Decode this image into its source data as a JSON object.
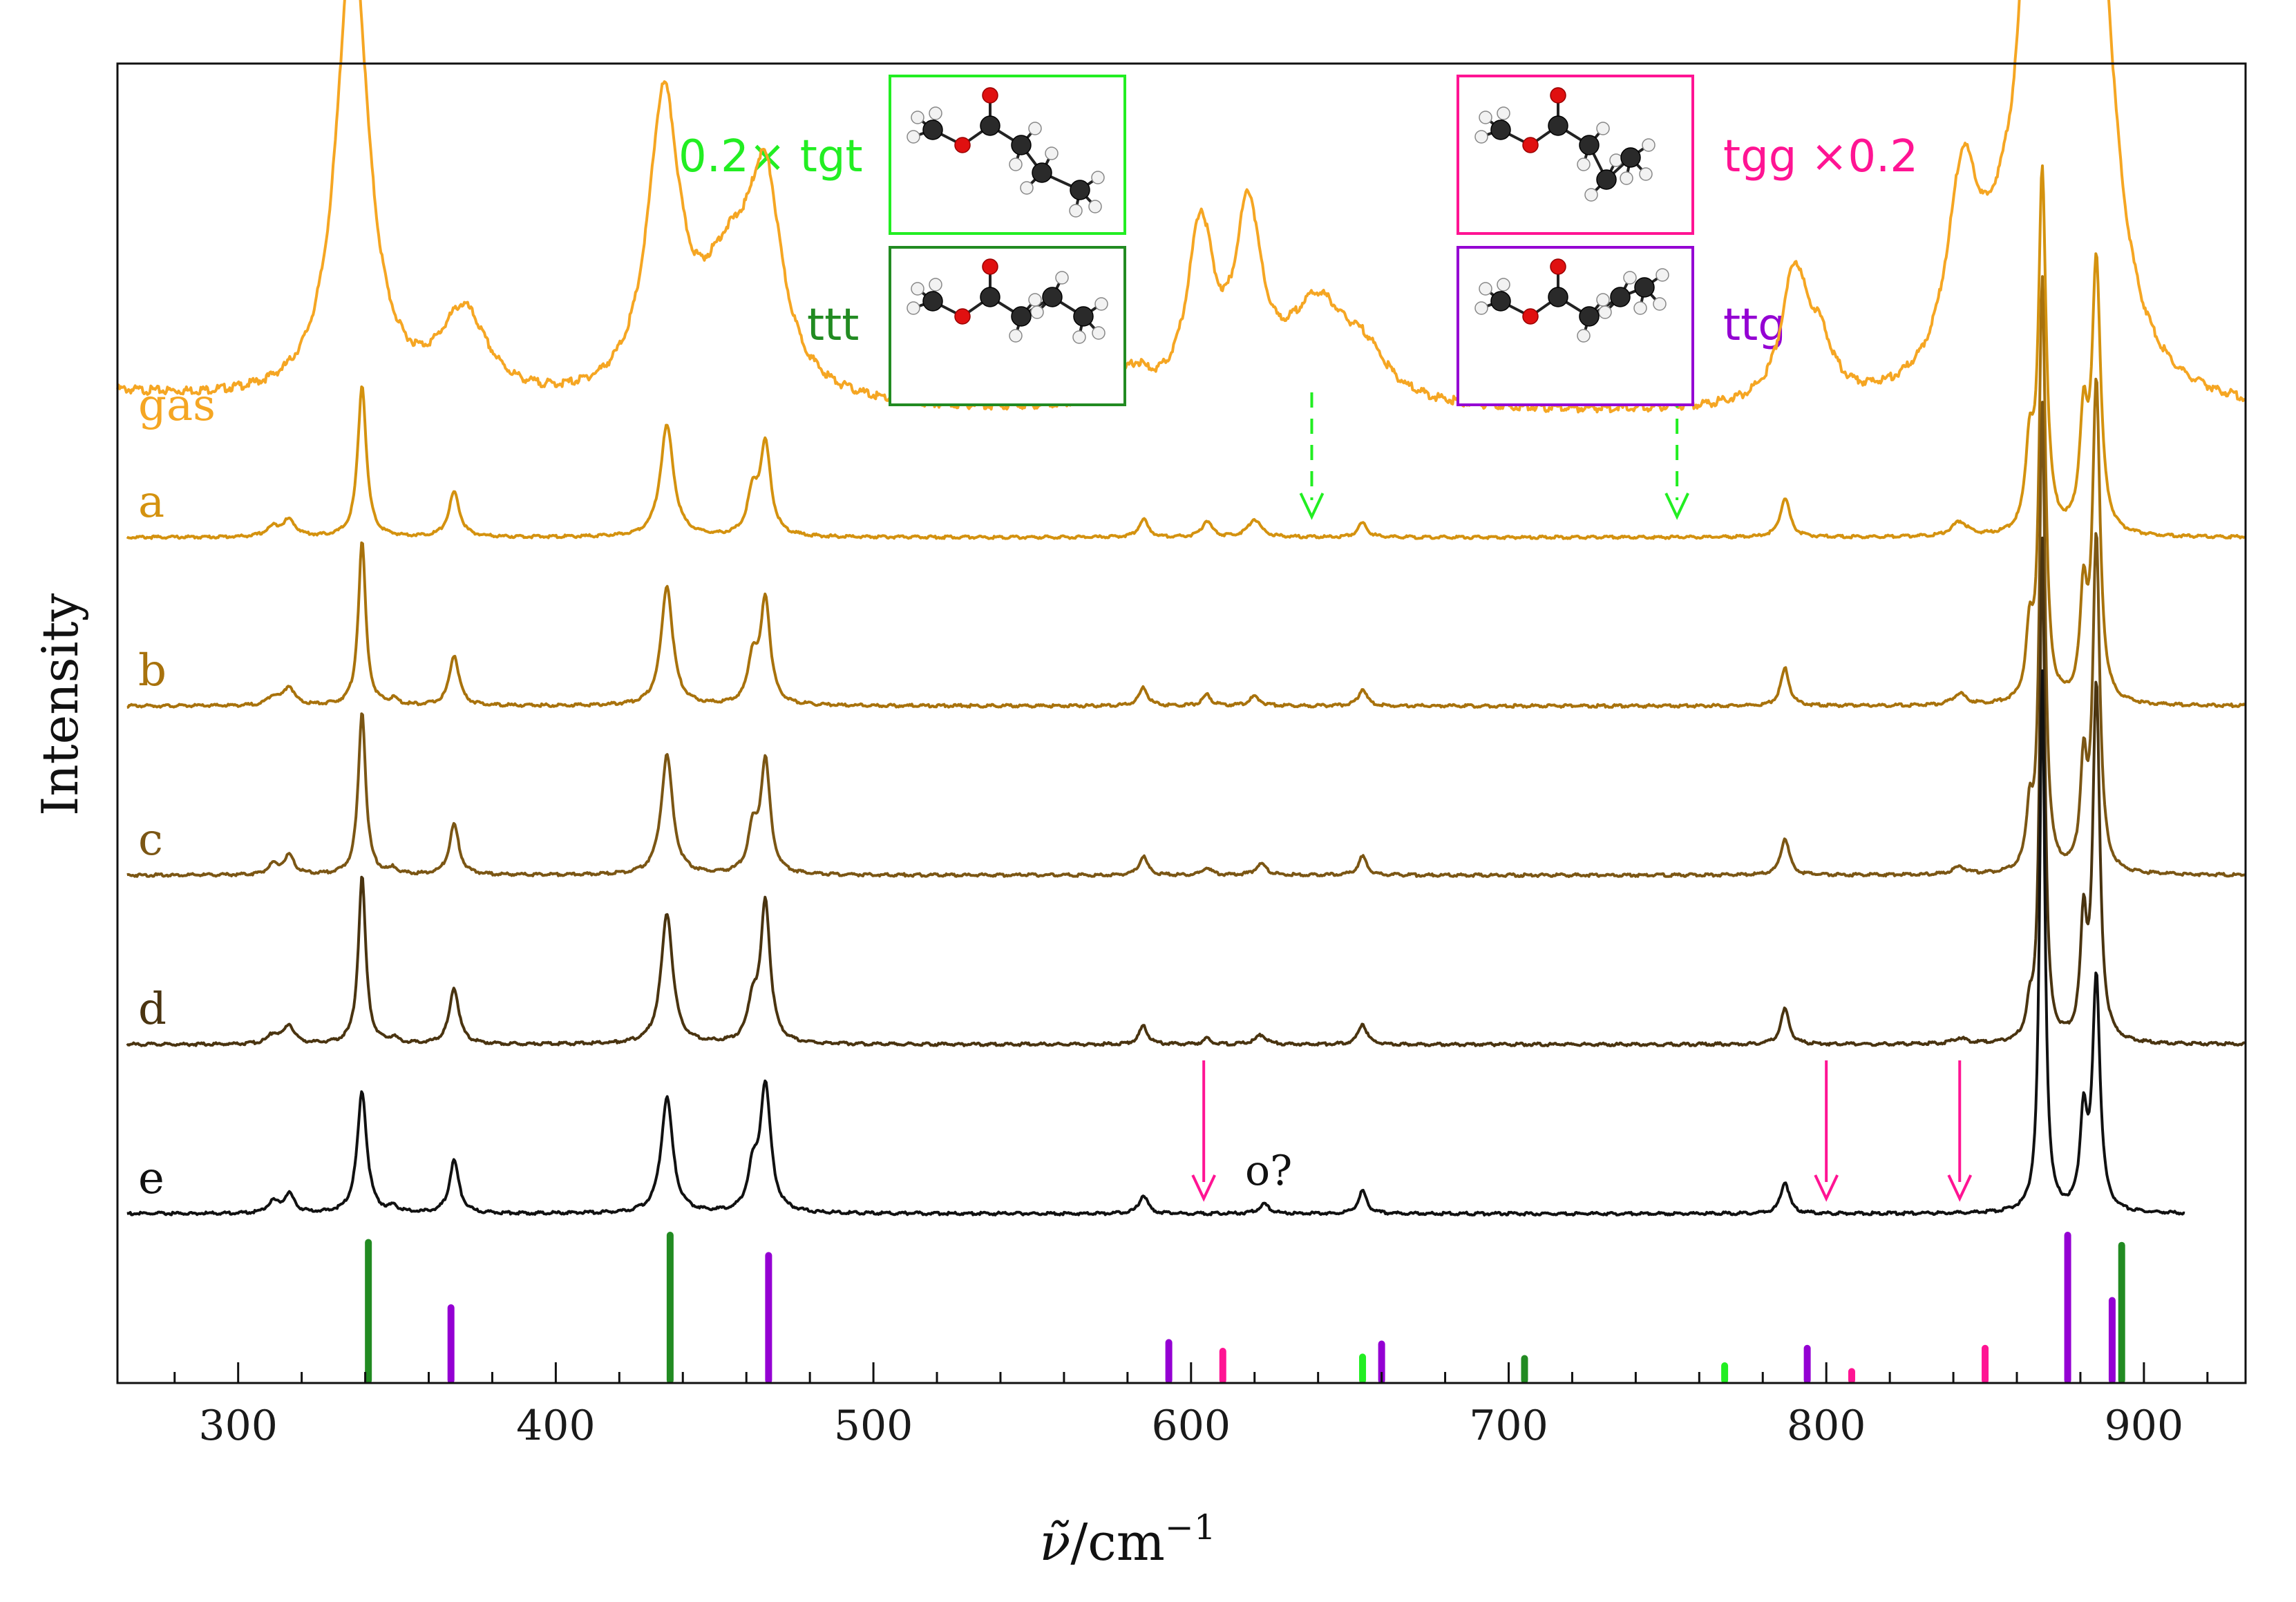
{
  "chart_data": {
    "type": "line",
    "title": "",
    "xlabel_symbol": "ν̃",
    "xlabel_unit": "cm",
    "xlabel_exp": "−1",
    "ylabel": "Intensity",
    "xlim": [
      262,
      932
    ],
    "x_ticks": [
      300,
      400,
      500,
      600,
      700,
      800,
      900
    ],
    "x_tick_labels": [
      "300",
      "400",
      "500",
      "600",
      "700",
      "800",
      "900"
    ],
    "colors": {
      "gas": "#f5a623",
      "a": "#d4920f",
      "b": "#a8720c",
      "c": "#7b5614",
      "d": "#4a3410",
      "e": "#111111",
      "tgt": "#22ee22",
      "ttt": "#228b22",
      "tgg": "#ff1493",
      "ttg": "#9400d3"
    },
    "series": [
      {
        "name": "gas",
        "label": "gas",
        "baseline": 0.0,
        "offset": 0.035,
        "xrange": [
          262,
          932
        ],
        "peaks": [
          {
            "x": 336,
            "h": 1.3,
            "w": 6
          },
          {
            "x": 371,
            "h": 0.24,
            "w": 9
          },
          {
            "x": 434,
            "h": 0.8,
            "w": 6
          },
          {
            "x": 455,
            "h": 0.35,
            "w": 12
          },
          {
            "x": 466,
            "h": 0.5,
            "w": 6
          },
          {
            "x": 582,
            "h": 0.09,
            "w": 6
          },
          {
            "x": 603,
            "h": 0.48,
            "w": 5
          },
          {
            "x": 618,
            "h": 0.5,
            "w": 5
          },
          {
            "x": 640,
            "h": 0.28,
            "w": 12
          },
          {
            "x": 655,
            "h": 0.1,
            "w": 8
          },
          {
            "x": 790,
            "h": 0.36,
            "w": 5
          },
          {
            "x": 798,
            "h": 0.14,
            "w": 5
          },
          {
            "x": 843,
            "h": 0.55,
            "w": 6
          },
          {
            "x": 855,
            "h": 0.2,
            "w": 8
          },
          {
            "x": 867,
            "h": 2.1,
            "w": 5
          },
          {
            "x": 884,
            "h": 1.55,
            "w": 7
          }
        ]
      },
      {
        "name": "a",
        "label": "a",
        "baseline": 0.0,
        "offset": 0.0,
        "xrange": [
          265,
          932
        ],
        "peaks": [
          {
            "x": 311,
            "h": 0.05,
            "w": 2.5
          },
          {
            "x": 316,
            "h": 0.09,
            "w": 2.5
          },
          {
            "x": 339,
            "h": 0.85,
            "w": 1.6
          },
          {
            "x": 368,
            "h": 0.25,
            "w": 2
          },
          {
            "x": 435,
            "h": 0.62,
            "w": 2.5
          },
          {
            "x": 462,
            "h": 0.22,
            "w": 2
          },
          {
            "x": 466,
            "h": 0.5,
            "w": 2
          },
          {
            "x": 585,
            "h": 0.1,
            "w": 1.8
          },
          {
            "x": 605,
            "h": 0.09,
            "w": 1.8
          },
          {
            "x": 620,
            "h": 0.1,
            "w": 2.5
          },
          {
            "x": 654,
            "h": 0.08,
            "w": 1.8
          },
          {
            "x": 787,
            "h": 0.22,
            "w": 1.8
          },
          {
            "x": 842,
            "h": 0.08,
            "w": 3
          },
          {
            "x": 864,
            "h": 0.45,
            "w": 1.5
          },
          {
            "x": 868,
            "h": 2.0,
            "w": 1.4
          },
          {
            "x": 881,
            "h": 0.6,
            "w": 1.5
          },
          {
            "x": 885,
            "h": 1.5,
            "w": 1.6
          }
        ]
      },
      {
        "name": "b",
        "label": "b",
        "baseline": 0.0,
        "offset": 0.0,
        "xrange": [
          265,
          932
        ],
        "peaks": [
          {
            "x": 311,
            "h": 0.05,
            "w": 2
          },
          {
            "x": 316,
            "h": 0.1,
            "w": 2
          },
          {
            "x": 339,
            "h": 0.88,
            "w": 1.4
          },
          {
            "x": 349,
            "h": 0.03,
            "w": 1.5
          },
          {
            "x": 368,
            "h": 0.27,
            "w": 1.8
          },
          {
            "x": 435,
            "h": 0.64,
            "w": 2.2
          },
          {
            "x": 462,
            "h": 0.24,
            "w": 1.8
          },
          {
            "x": 466,
            "h": 0.56,
            "w": 1.8
          },
          {
            "x": 585,
            "h": 0.1,
            "w": 1.6
          },
          {
            "x": 605,
            "h": 0.06,
            "w": 1.6
          },
          {
            "x": 620,
            "h": 0.05,
            "w": 2
          },
          {
            "x": 654,
            "h": 0.09,
            "w": 1.6
          },
          {
            "x": 787,
            "h": 0.2,
            "w": 1.6
          },
          {
            "x": 842,
            "h": 0.06,
            "w": 2.5
          },
          {
            "x": 864,
            "h": 0.35,
            "w": 1.3
          },
          {
            "x": 868,
            "h": 2.25,
            "w": 1.2
          },
          {
            "x": 881,
            "h": 0.55,
            "w": 1.3
          },
          {
            "x": 885,
            "h": 1.7,
            "w": 1.4
          }
        ]
      },
      {
        "name": "c",
        "label": "c",
        "baseline": 0.0,
        "offset": 0.0,
        "xrange": [
          265,
          932
        ],
        "peaks": [
          {
            "x": 311,
            "h": 0.05,
            "w": 2
          },
          {
            "x": 316,
            "h": 0.1,
            "w": 2
          },
          {
            "x": 339,
            "h": 0.88,
            "w": 1.4
          },
          {
            "x": 349,
            "h": 0.03,
            "w": 1.5
          },
          {
            "x": 368,
            "h": 0.27,
            "w": 1.8
          },
          {
            "x": 435,
            "h": 0.64,
            "w": 2.2
          },
          {
            "x": 462,
            "h": 0.22,
            "w": 1.8
          },
          {
            "x": 466,
            "h": 0.6,
            "w": 1.8
          },
          {
            "x": 585,
            "h": 0.1,
            "w": 1.6
          },
          {
            "x": 605,
            "h": 0.04,
            "w": 1.6
          },
          {
            "x": 622,
            "h": 0.06,
            "w": 2
          },
          {
            "x": 654,
            "h": 0.1,
            "w": 1.6
          },
          {
            "x": 787,
            "h": 0.2,
            "w": 1.6
          },
          {
            "x": 842,
            "h": 0.04,
            "w": 2.5
          },
          {
            "x": 864,
            "h": 0.3,
            "w": 1.2
          },
          {
            "x": 868,
            "h": 2.5,
            "w": 1.1
          },
          {
            "x": 881,
            "h": 0.55,
            "w": 1.2
          },
          {
            "x": 885,
            "h": 1.8,
            "w": 1.3
          }
        ]
      },
      {
        "name": "d",
        "label": "d",
        "baseline": 0.0,
        "offset": 0.0,
        "xrange": [
          265,
          932
        ],
        "peaks": [
          {
            "x": 311,
            "h": 0.05,
            "w": 2
          },
          {
            "x": 316,
            "h": 0.1,
            "w": 2
          },
          {
            "x": 339,
            "h": 0.9,
            "w": 1.4
          },
          {
            "x": 349,
            "h": 0.03,
            "w": 1.5
          },
          {
            "x": 368,
            "h": 0.3,
            "w": 1.8
          },
          {
            "x": 435,
            "h": 0.7,
            "w": 2.2
          },
          {
            "x": 462,
            "h": 0.2,
            "w": 1.8
          },
          {
            "x": 466,
            "h": 0.75,
            "w": 1.8
          },
          {
            "x": 585,
            "h": 0.1,
            "w": 1.6
          },
          {
            "x": 605,
            "h": 0.03,
            "w": 1.6
          },
          {
            "x": 622,
            "h": 0.05,
            "w": 2
          },
          {
            "x": 654,
            "h": 0.11,
            "w": 1.6
          },
          {
            "x": 787,
            "h": 0.19,
            "w": 1.6
          },
          {
            "x": 842,
            "h": 0.03,
            "w": 2.5
          },
          {
            "x": 864,
            "h": 0.15,
            "w": 1.2
          },
          {
            "x": 868,
            "h": 2.7,
            "w": 1.0
          },
          {
            "x": 881,
            "h": 0.6,
            "w": 1.2
          },
          {
            "x": 885,
            "h": 1.9,
            "w": 1.3
          }
        ]
      },
      {
        "name": "e",
        "label": "e",
        "baseline": 0.0,
        "offset": 0.0,
        "xrange": [
          265,
          913
        ],
        "peaks": [
          {
            "x": 311,
            "h": 0.06,
            "w": 2
          },
          {
            "x": 316,
            "h": 0.1,
            "w": 2
          },
          {
            "x": 339,
            "h": 0.65,
            "w": 1.8
          },
          {
            "x": 349,
            "h": 0.03,
            "w": 1.5
          },
          {
            "x": 368,
            "h": 0.28,
            "w": 1.8
          },
          {
            "x": 435,
            "h": 0.62,
            "w": 2.2
          },
          {
            "x": 462,
            "h": 0.2,
            "w": 1.8
          },
          {
            "x": 466,
            "h": 0.68,
            "w": 2
          },
          {
            "x": 585,
            "h": 0.1,
            "w": 1.6
          },
          {
            "x": 623,
            "h": 0.05,
            "w": 2
          },
          {
            "x": 654,
            "h": 0.12,
            "w": 1.6
          },
          {
            "x": 787,
            "h": 0.17,
            "w": 1.6
          },
          {
            "x": 868,
            "h": 2.9,
            "w": 1.0
          },
          {
            "x": 881,
            "h": 0.5,
            "w": 1.3
          },
          {
            "x": 885,
            "h": 1.25,
            "w": 1.4
          }
        ]
      }
    ],
    "stick_spectra": [
      {
        "name": "ttt",
        "color": "#228b22",
        "sticks": [
          {
            "x": 341,
            "h": 0.95
          },
          {
            "x": 436,
            "h": 1.0
          },
          {
            "x": 705,
            "h": 0.15
          },
          {
            "x": 893,
            "h": 0.93
          }
        ]
      },
      {
        "name": "ttg",
        "color": "#9400d3",
        "sticks": [
          {
            "x": 367,
            "h": 0.5
          },
          {
            "x": 467,
            "h": 0.86
          },
          {
            "x": 593,
            "h": 0.26
          },
          {
            "x": 660,
            "h": 0.25
          },
          {
            "x": 794,
            "h": 0.22
          },
          {
            "x": 876,
            "h": 1.0
          },
          {
            "x": 890,
            "h": 0.55
          }
        ]
      },
      {
        "name": "tgg",
        "color": "#ff1493",
        "sticks": [
          {
            "x": 610,
            "h": 0.2
          },
          {
            "x": 808,
            "h": 0.06
          },
          {
            "x": 850,
            "h": 0.22
          }
        ]
      },
      {
        "name": "tgt",
        "color": "#22ee22",
        "sticks": [
          {
            "x": 654,
            "h": 0.16
          },
          {
            "x": 768,
            "h": 0.1
          }
        ]
      }
    ],
    "annotations": {
      "green_dashed_arrows_x": [
        638,
        753
      ],
      "pink_arrows_x": [
        604,
        800,
        842
      ],
      "o_label": "o?"
    },
    "conformers": [
      {
        "name": "tgt",
        "label": "0.2× tgt",
        "color": "#22ee22"
      },
      {
        "name": "ttt",
        "label": "ttt",
        "color": "#228b22"
      },
      {
        "name": "tgg",
        "label": "tgg ×0.2",
        "color": "#ff1493"
      },
      {
        "name": "ttg",
        "label": "ttg",
        "color": "#9400d3"
      }
    ]
  }
}
